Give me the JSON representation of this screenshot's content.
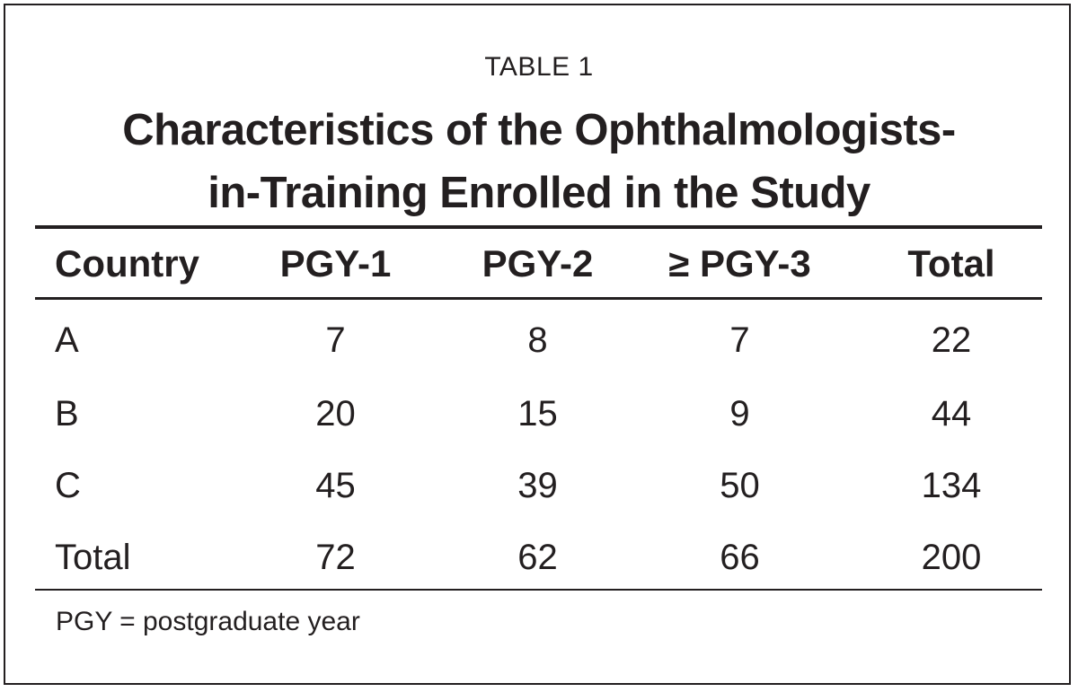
{
  "table_label": "TABLE 1",
  "title_line1": "Characteristics of the Ophthalmologists-",
  "title_line2": "in-Training Enrolled in the Study",
  "columns": [
    "Country",
    "PGY-1",
    "PGY-2",
    "≥ PGY-3",
    "Total"
  ],
  "rows": [
    [
      "A",
      "7",
      "8",
      "7",
      "22"
    ],
    [
      "B",
      "20",
      "15",
      "9",
      "44"
    ],
    [
      "C",
      "45",
      "39",
      "50",
      "134"
    ],
    [
      "Total",
      "72",
      "62",
      "66",
      "200"
    ]
  ],
  "footnote": "PGY = postgraduate year",
  "chart_data": {
    "type": "table",
    "title": "Characteristics of the Ophthalmologists-in-Training Enrolled in the Study",
    "columns": [
      "Country",
      "PGY-1",
      "PGY-2",
      "≥ PGY-3",
      "Total"
    ],
    "rows": [
      [
        "A",
        7,
        8,
        7,
        22
      ],
      [
        "B",
        20,
        15,
        9,
        44
      ],
      [
        "C",
        45,
        39,
        50,
        134
      ],
      [
        "Total",
        72,
        62,
        66,
        200
      ]
    ]
  }
}
